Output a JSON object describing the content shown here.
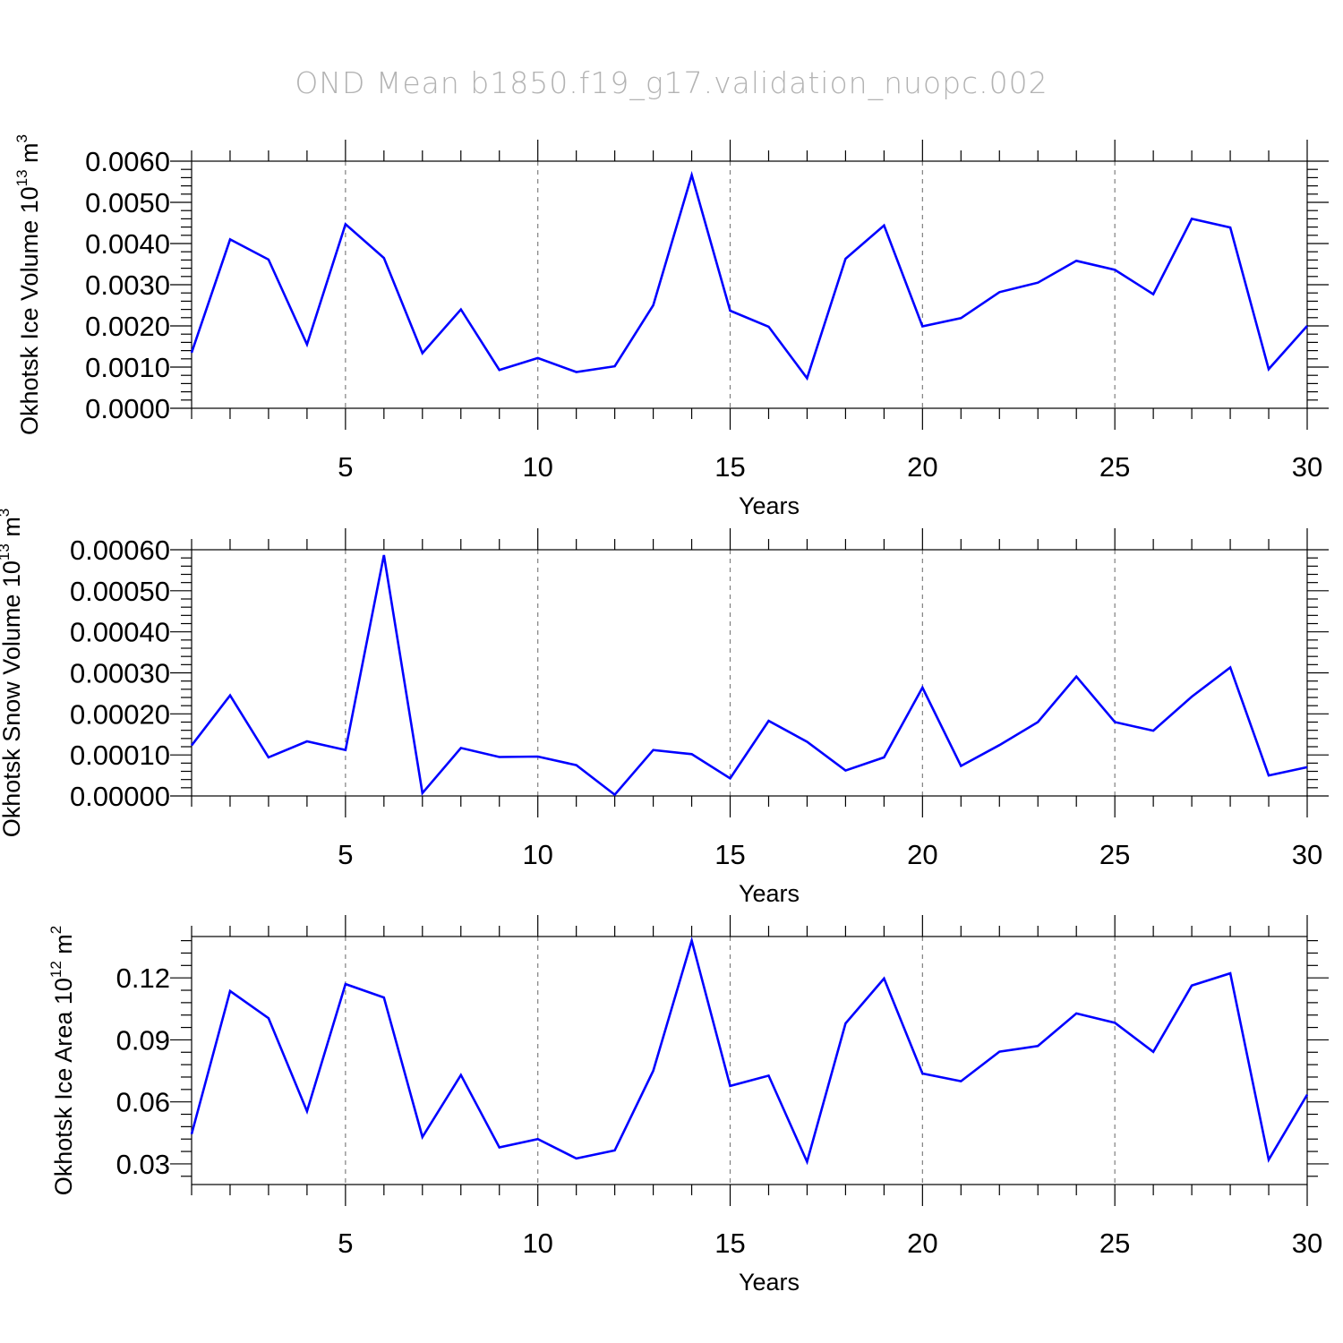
{
  "title": "OND Mean b1850.f19_g17.validation_nuopc.002",
  "colors": {
    "series": "#0000ff",
    "title": "#b3b3b3",
    "grid": "#808080"
  },
  "chart_data": [
    {
      "type": "line",
      "xlabel": "Years",
      "ylabel": {
        "text": "Okhotsk Ice Volume 10",
        "sup": "13",
        "unit": " m",
        "unit_sup": "3"
      },
      "xlim": [
        1,
        30
      ],
      "ylim": [
        0,
        0.006
      ],
      "x_ticks": [
        "5",
        "10",
        "15",
        "20",
        "25",
        "30"
      ],
      "y_ticks": [
        "0.0000",
        "0.0010",
        "0.0020",
        "0.0030",
        "0.0040",
        "0.0050",
        "0.0060"
      ],
      "y_tick_values": [
        0,
        0.001,
        0.002,
        0.003,
        0.004,
        0.005,
        0.006
      ],
      "grid": "vertical dashed at major x ticks",
      "x": [
        1,
        2,
        3,
        4,
        5,
        6,
        7,
        8,
        9,
        10,
        11,
        12,
        13,
        14,
        15,
        16,
        17,
        18,
        19,
        20,
        21,
        22,
        23,
        24,
        25,
        26,
        27,
        28,
        29,
        30
      ],
      "values": [
        0.00135,
        0.0041,
        0.00361,
        0.00155,
        0.00447,
        0.00365,
        0.00134,
        0.0024,
        0.00093,
        0.00122,
        0.00088,
        0.00102,
        0.0025,
        0.00566,
        0.00237,
        0.00198,
        0.00073,
        0.00363,
        0.00444,
        0.00199,
        0.00219,
        0.00282,
        0.00305,
        0.00358,
        0.00336,
        0.00277,
        0.0046,
        0.00439,
        0.00095,
        0.002
      ]
    },
    {
      "type": "line",
      "xlabel": "Years",
      "ylabel": {
        "text": "Okhotsk Snow Volume 10",
        "sup": "13",
        "unit": " m",
        "unit_sup": "3"
      },
      "xlim": [
        1,
        30
      ],
      "ylim": [
        0,
        0.0006
      ],
      "x_ticks": [
        "5",
        "10",
        "15",
        "20",
        "25",
        "30"
      ],
      "y_ticks": [
        "0.00000",
        "0.00010",
        "0.00020",
        "0.00030",
        "0.00040",
        "0.00050",
        "0.00060"
      ],
      "y_tick_values": [
        0,
        0.0001,
        0.0002,
        0.0003,
        0.0004,
        0.0005,
        0.0006
      ],
      "grid": "vertical dashed at major x ticks",
      "x": [
        1,
        2,
        3,
        4,
        5,
        6,
        7,
        8,
        9,
        10,
        11,
        12,
        13,
        14,
        15,
        16,
        17,
        18,
        19,
        20,
        21,
        22,
        23,
        24,
        25,
        26,
        27,
        28,
        29,
        30
      ],
      "values": [
        0.000123,
        0.000245,
        9.4e-05,
        0.000133,
        0.000112,
        0.000587,
        7e-06,
        0.000117,
        9.5e-05,
        9.6e-05,
        7.5e-05,
        3e-06,
        0.000112,
        0.000102,
        4.3e-05,
        0.000183,
        0.000132,
        6.2e-05,
        9.4e-05,
        0.000264,
        7.3e-05,
        0.000124,
        0.00018,
        0.000291,
        0.00018,
        0.000159,
        0.000242,
        0.000313,
        5e-05,
        7e-05
      ]
    },
    {
      "type": "line",
      "xlabel": "Years",
      "ylabel": {
        "text": "Okhotsk Ice Area 10",
        "sup": "12",
        "unit": " m",
        "unit_sup": "2"
      },
      "xlim": [
        1,
        30
      ],
      "ylim": [
        0.02,
        0.14
      ],
      "x_ticks": [
        "5",
        "10",
        "15",
        "20",
        "25",
        "30"
      ],
      "y_ticks": [
        "0.03",
        "0.06",
        "0.09",
        "0.12"
      ],
      "y_tick_values": [
        0.03,
        0.06,
        0.09,
        0.12
      ],
      "grid": "vertical dashed at major x ticks",
      "x": [
        1,
        2,
        3,
        4,
        5,
        6,
        7,
        8,
        9,
        10,
        11,
        12,
        13,
        14,
        15,
        16,
        17,
        18,
        19,
        20,
        21,
        22,
        23,
        24,
        25,
        26,
        27,
        28,
        29,
        30
      ],
      "values": [
        0.0444,
        0.1136,
        0.1005,
        0.0555,
        0.117,
        0.1105,
        0.043,
        0.073,
        0.038,
        0.042,
        0.0326,
        0.0365,
        0.075,
        0.138,
        0.0677,
        0.0727,
        0.031,
        0.098,
        0.1197,
        0.0737,
        0.07,
        0.0843,
        0.087,
        0.1028,
        0.0983,
        0.0842,
        0.1163,
        0.1222,
        0.032,
        0.0635
      ]
    }
  ]
}
